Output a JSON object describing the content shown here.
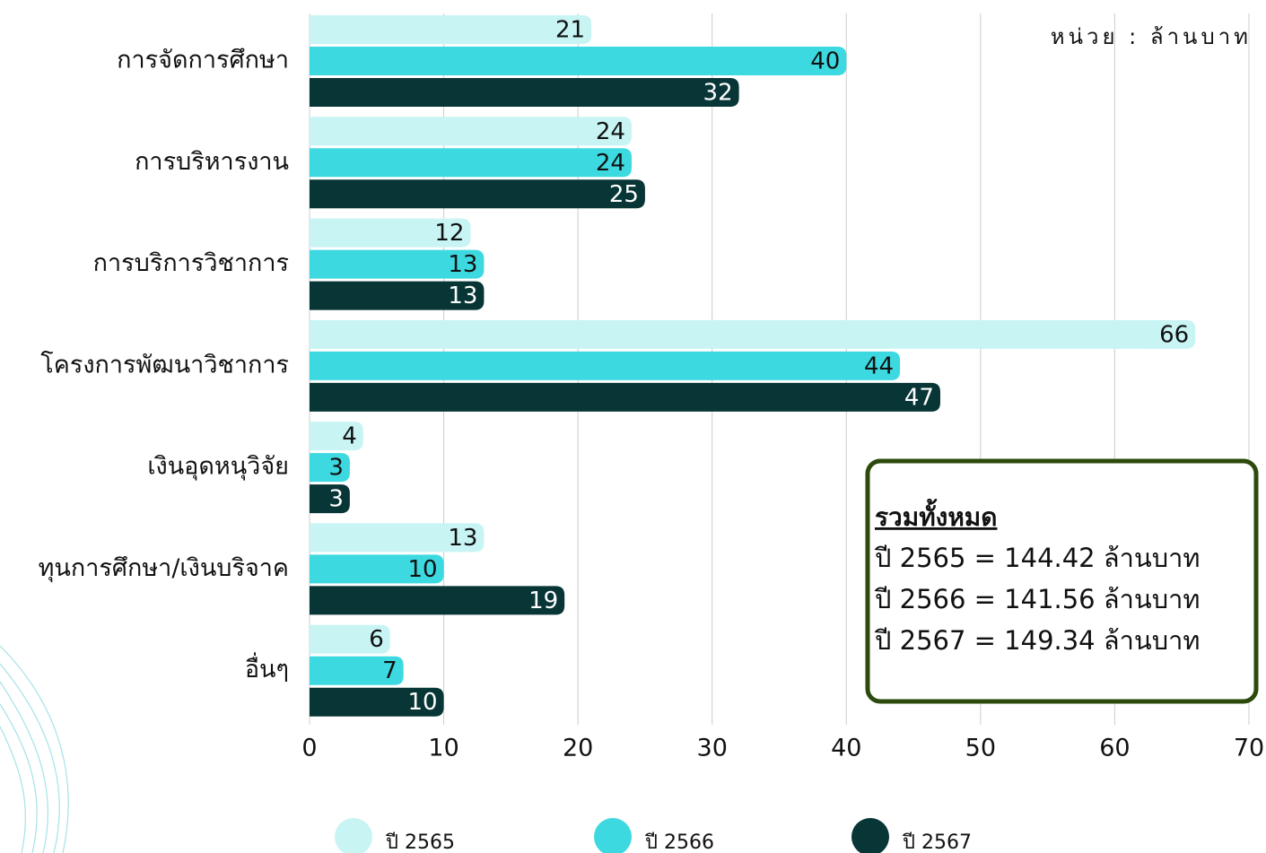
{
  "chart_data": {
    "type": "hbar",
    "unit_label": "หน่วย : ล้านบาท",
    "categories": [
      "การจัดการศึกษา",
      "การบริหารงาน",
      "การบริการวิชาการ",
      "โครงการพัฒนาวิชาการ",
      "เงินอุดหนุวิจัย",
      "ทุนการศึกษา/เงินบริจาค",
      "อื่นๆ"
    ],
    "series": [
      {
        "name": "ปี 2565",
        "color": "#c8f4f4",
        "values": [
          21,
          24,
          12,
          66,
          4,
          13,
          6
        ]
      },
      {
        "name": "ปี 2566",
        "color": "#3dd9e0",
        "values": [
          40,
          24,
          13,
          44,
          3,
          10,
          7
        ]
      },
      {
        "name": "ปี 2567",
        "color": "#083535",
        "values": [
          32,
          25,
          13,
          47,
          3,
          19,
          10
        ]
      }
    ],
    "xlim": [
      0,
      70
    ],
    "xticks": [
      0,
      10,
      20,
      30,
      40,
      50,
      60,
      70
    ],
    "grid": true,
    "legend": "bottom",
    "annotation": {
      "title": "รวมทั้งหมด",
      "lines": [
        "ปี 2565 = 144.42 ล้านบาท",
        "ปี 2566 = 141.56 ล้านบาท",
        "ปี 2567 = 149.34 ล้านบาท"
      ]
    }
  }
}
